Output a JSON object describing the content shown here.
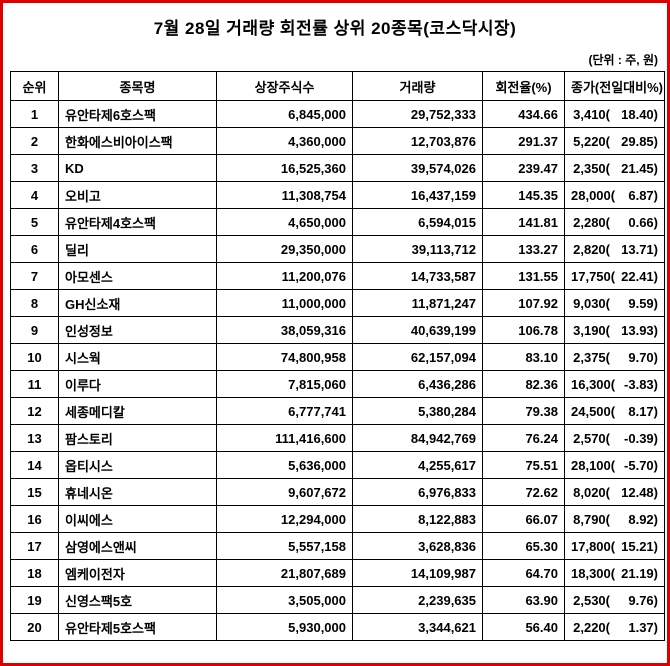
{
  "title": "7월 28일 거래량 회전률 상위 20종목(코스닥시장)",
  "unit_note": "(단위 : 주, 원)",
  "colors": {
    "page_border": "#dd0000",
    "grid": "#000000",
    "text": "#000000",
    "background": "#ffffff"
  },
  "table": {
    "headers": [
      "순위",
      "종목명",
      "상장주식수",
      "거래량",
      "회전율(%)",
      "종가(전일대비%)"
    ],
    "rows": [
      {
        "rank": "1",
        "name": "유안타제6호스팩",
        "shares": "6,845,000",
        "volume": "29,752,333",
        "turnover": "434.66",
        "price": "3,410(",
        "change": "18.40)"
      },
      {
        "rank": "2",
        "name": "한화에스비아이스팩",
        "shares": "4,360,000",
        "volume": "12,703,876",
        "turnover": "291.37",
        "price": "5,220(",
        "change": "29.85)"
      },
      {
        "rank": "3",
        "name": "KD",
        "shares": "16,525,360",
        "volume": "39,574,026",
        "turnover": "239.47",
        "price": "2,350(",
        "change": "21.45)"
      },
      {
        "rank": "4",
        "name": "오비고",
        "shares": "11,308,754",
        "volume": "16,437,159",
        "turnover": "145.35",
        "price": "28,000(",
        "change": "6.87)"
      },
      {
        "rank": "5",
        "name": "유안타제4호스팩",
        "shares": "4,650,000",
        "volume": "6,594,015",
        "turnover": "141.81",
        "price": "2,280(",
        "change": "0.66)"
      },
      {
        "rank": "6",
        "name": "딜리",
        "shares": "29,350,000",
        "volume": "39,113,712",
        "turnover": "133.27",
        "price": "2,820(",
        "change": "13.71)"
      },
      {
        "rank": "7",
        "name": "아모센스",
        "shares": "11,200,076",
        "volume": "14,733,587",
        "turnover": "131.55",
        "price": "17,750(",
        "change": "22.41)"
      },
      {
        "rank": "8",
        "name": "GH신소재",
        "shares": "11,000,000",
        "volume": "11,871,247",
        "turnover": "107.92",
        "price": "9,030(",
        "change": "9.59)"
      },
      {
        "rank": "9",
        "name": "인성정보",
        "shares": "38,059,316",
        "volume": "40,639,199",
        "turnover": "106.78",
        "price": "3,190(",
        "change": "13.93)"
      },
      {
        "rank": "10",
        "name": "시스웍",
        "shares": "74,800,958",
        "volume": "62,157,094",
        "turnover": "83.10",
        "price": "2,375(",
        "change": "9.70)"
      },
      {
        "rank": "11",
        "name": "이루다",
        "shares": "7,815,060",
        "volume": "6,436,286",
        "turnover": "82.36",
        "price": "16,300(",
        "change": "-3.83)"
      },
      {
        "rank": "12",
        "name": "세종메디칼",
        "shares": "6,777,741",
        "volume": "5,380,284",
        "turnover": "79.38",
        "price": "24,500(",
        "change": "8.17)"
      },
      {
        "rank": "13",
        "name": "팜스토리",
        "shares": "111,416,600",
        "volume": "84,942,769",
        "turnover": "76.24",
        "price": "2,570(",
        "change": "-0.39)"
      },
      {
        "rank": "14",
        "name": "옵티시스",
        "shares": "5,636,000",
        "volume": "4,255,617",
        "turnover": "75.51",
        "price": "28,100(",
        "change": "-5.70)"
      },
      {
        "rank": "15",
        "name": "휴네시온",
        "shares": "9,607,672",
        "volume": "6,976,833",
        "turnover": "72.62",
        "price": "8,020(",
        "change": "12.48)"
      },
      {
        "rank": "16",
        "name": "이씨에스",
        "shares": "12,294,000",
        "volume": "8,122,883",
        "turnover": "66.07",
        "price": "8,790(",
        "change": "8.92)"
      },
      {
        "rank": "17",
        "name": "삼영에스앤씨",
        "shares": "5,557,158",
        "volume": "3,628,836",
        "turnover": "65.30",
        "price": "17,800(",
        "change": "15.21)"
      },
      {
        "rank": "18",
        "name": "엠케이전자",
        "shares": "21,807,689",
        "volume": "14,109,987",
        "turnover": "64.70",
        "price": "18,300(",
        "change": "21.19)"
      },
      {
        "rank": "19",
        "name": "신영스팩5호",
        "shares": "3,505,000",
        "volume": "2,239,635",
        "turnover": "63.90",
        "price": "2,530(",
        "change": "9.76)"
      },
      {
        "rank": "20",
        "name": "유안타제5호스팩",
        "shares": "5,930,000",
        "volume": "3,344,621",
        "turnover": "56.40",
        "price": "2,220(",
        "change": "1.37)"
      }
    ]
  }
}
